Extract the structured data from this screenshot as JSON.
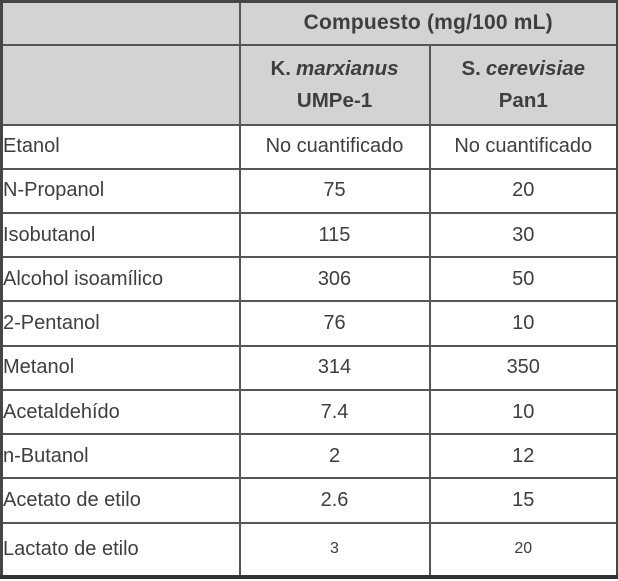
{
  "table": {
    "title": "Compuesto (mg/100 mL)",
    "columns": [
      {
        "genus": "K.",
        "species": "marxianus",
        "strain": "UMPe-1"
      },
      {
        "genus": "S.",
        "species": "cerevisiae",
        "strain": "Pan1"
      }
    ],
    "rows": [
      {
        "compound": "Etanol",
        "umpe1": "No cuantificado",
        "pan1": "No cuantificado"
      },
      {
        "compound": "N-Propanol",
        "umpe1": "75",
        "pan1": "20"
      },
      {
        "compound": "Isobutanol",
        "umpe1": "115",
        "pan1": "30"
      },
      {
        "compound": "Alcohol isoamílico",
        "umpe1": "306",
        "pan1": "50"
      },
      {
        "compound": "2-Pentanol",
        "umpe1": "76",
        "pan1": "10"
      },
      {
        "compound": "Metanol",
        "umpe1": "314",
        "pan1": "350"
      },
      {
        "compound": "Acetaldehído",
        "umpe1": "7.4",
        "pan1": "10"
      },
      {
        "compound": "n-Butanol",
        "umpe1": "2",
        "pan1": "12"
      },
      {
        "compound": "Acetato de etilo",
        "umpe1": "2.6",
        "pan1": "15"
      },
      {
        "compound": "Lactato de etilo",
        "umpe1": "3",
        "pan1": "20"
      }
    ],
    "colors": {
      "header_bg": "#d2d3d5",
      "border": "#55565a",
      "outer_border": "#454648",
      "text": "#3d3e40"
    }
  }
}
